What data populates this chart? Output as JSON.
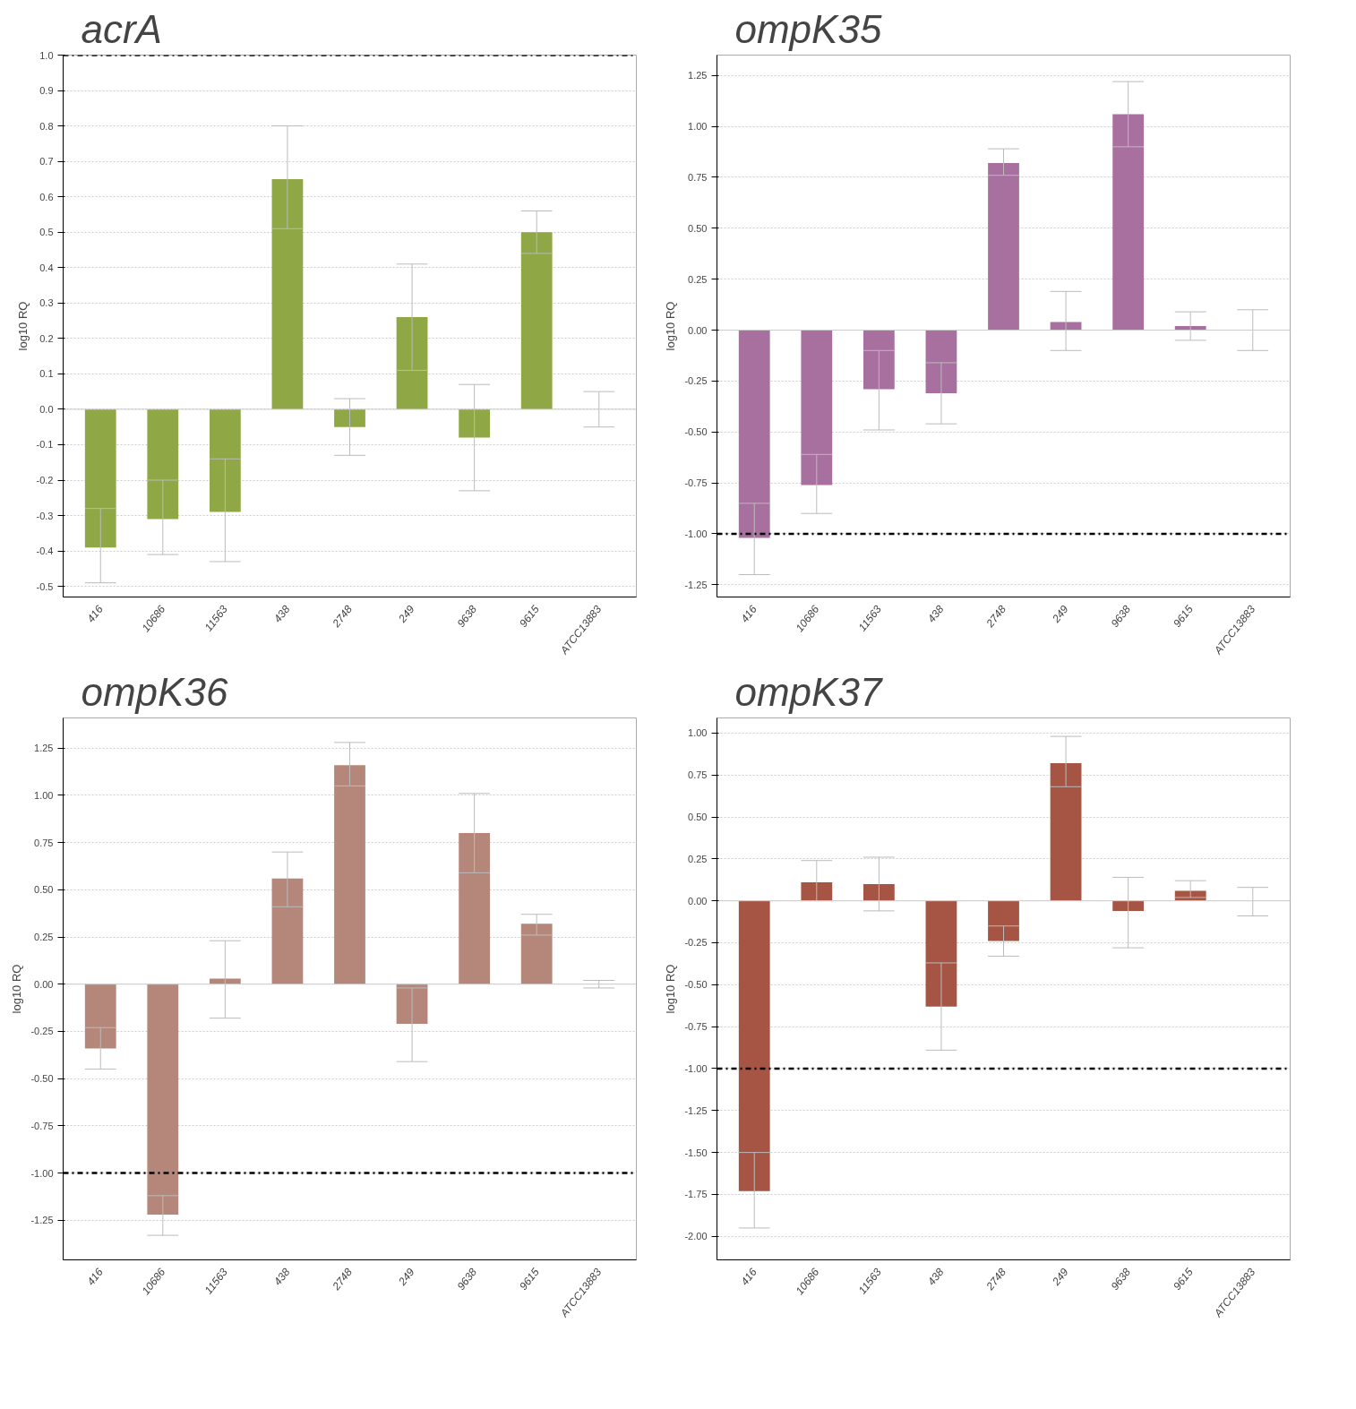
{
  "chart_data": [
    {
      "type": "bar",
      "title": "acrA",
      "ylabel": "log10 RQ",
      "categories": [
        "416",
        "10686",
        "11563",
        "438",
        "2748",
        "249",
        "9638",
        "9615",
        "ATCC13883"
      ],
      "series": [
        {
          "color": "#8fa744",
          "values": [
            -0.39,
            -0.31,
            -0.29,
            0.65,
            -0.05,
            0.26,
            -0.08,
            0.5,
            0.0
          ],
          "errors": [
            [
              -0.49,
              -0.28
            ],
            [
              -0.41,
              -0.2
            ],
            [
              -0.43,
              -0.14
            ],
            [
              0.51,
              0.8
            ],
            [
              -0.13,
              0.03
            ],
            [
              0.11,
              0.41
            ],
            [
              -0.23,
              0.07
            ],
            [
              0.44,
              0.56
            ],
            [
              -0.05,
              0.05
            ]
          ]
        }
      ],
      "ylim": [
        -0.53,
        1.0
      ],
      "yticks": [
        {
          "value": -0.5,
          "label": "-0.5"
        },
        {
          "value": -0.4,
          "label": "-0.4"
        },
        {
          "value": -0.3,
          "label": "-0.3"
        },
        {
          "value": -0.2,
          "label": "-0.2"
        },
        {
          "value": -0.1,
          "label": "-0.1"
        },
        {
          "value": 0,
          "label": "0.0"
        },
        0.1,
        0.2,
        0.3,
        0.4,
        0.5,
        0.6,
        0.7,
        0.8,
        0.9,
        {
          "value": 1.0,
          "label": "1.0"
        }
      ],
      "ref_lines": [
        {
          "axis": "y",
          "value": 1.0,
          "color": "#000000",
          "line_style": "dashdot"
        }
      ],
      "grid": "y"
    },
    {
      "type": "bar",
      "title": "ompK35",
      "ylabel": "log10 RQ",
      "categories": [
        "416",
        "10686",
        "11563",
        "438",
        "2748",
        "249",
        "9638",
        "9615",
        "ATCC13883"
      ],
      "series": [
        {
          "color": "#a8709f",
          "values": [
            -1.02,
            -0.76,
            -0.29,
            -0.31,
            0.82,
            0.04,
            1.06,
            0.02,
            0.0
          ],
          "errors": [
            [
              -1.2,
              -0.85
            ],
            [
              -0.9,
              -0.61
            ],
            [
              -0.49,
              -0.1
            ],
            [
              -0.46,
              -0.16
            ],
            [
              0.76,
              0.89
            ],
            [
              -0.1,
              0.19
            ],
            [
              0.9,
              1.22
            ],
            [
              -0.05,
              0.09
            ],
            [
              -0.1,
              0.1
            ]
          ]
        }
      ],
      "ylim": [
        -1.31,
        1.35
      ],
      "yticks": [
        {
          "value": -1.25,
          "label": "-1.25"
        },
        {
          "value": -1.0,
          "label": "-1.00"
        },
        {
          "value": -0.75,
          "label": "-0.75"
        },
        {
          "value": -0.5,
          "label": "-0.50"
        },
        {
          "value": -0.25,
          "label": "-0.25"
        },
        {
          "value": 0,
          "label": "0.00"
        },
        0.25,
        {
          "value": 0.5,
          "label": "0.50"
        },
        0.75,
        {
          "value": 1.0,
          "label": "1.00"
        },
        1.25
      ],
      "ref_lines": [
        {
          "axis": "y",
          "value": -1.0,
          "color": "#000000",
          "line_style": "dashdot"
        }
      ],
      "grid": "y"
    },
    {
      "type": "bar",
      "title": "ompK36",
      "ylabel": "log10 RQ",
      "categories": [
        "416",
        "10686",
        "11563",
        "438",
        "2748",
        "249",
        "9638",
        "9615",
        "ATCC13883"
      ],
      "series": [
        {
          "color": "#b5877a",
          "values": [
            -0.34,
            -1.22,
            0.03,
            0.56,
            1.16,
            -0.21,
            0.8,
            0.32,
            0.0
          ],
          "errors": [
            [
              -0.45,
              -0.23
            ],
            [
              -1.33,
              -1.12
            ],
            [
              -0.18,
              0.23
            ],
            [
              0.41,
              0.7
            ],
            [
              1.05,
              1.28
            ],
            [
              -0.41,
              -0.02
            ],
            [
              0.59,
              1.01
            ],
            [
              0.26,
              0.37
            ],
            [
              -0.02,
              0.02
            ]
          ]
        }
      ],
      "ylim": [
        -1.46,
        1.41
      ],
      "yticks": [
        {
          "value": -1.25,
          "label": "-1.25"
        },
        {
          "value": -1.0,
          "label": "-1.00"
        },
        {
          "value": -0.75,
          "label": "-0.75"
        },
        {
          "value": -0.5,
          "label": "-0.50"
        },
        {
          "value": -0.25,
          "label": "-0.25"
        },
        {
          "value": 0,
          "label": "0.00"
        },
        0.25,
        {
          "value": 0.5,
          "label": "0.50"
        },
        0.75,
        {
          "value": 1.0,
          "label": "1.00"
        },
        1.25
      ],
      "ref_lines": [
        {
          "axis": "y",
          "value": -1.0,
          "color": "#000000",
          "line_style": "dashdot"
        }
      ],
      "grid": "y"
    },
    {
      "type": "bar",
      "title": "ompK37",
      "ylabel": "log10 RQ",
      "categories": [
        "416",
        "10686",
        "11563",
        "438",
        "2748",
        "249",
        "9638",
        "9615",
        "ATCC13883"
      ],
      "series": [
        {
          "color": "#a65443",
          "values": [
            -1.73,
            0.11,
            0.1,
            -0.63,
            -0.24,
            0.82,
            -0.06,
            0.06,
            0.0
          ],
          "errors": [
            [
              -1.95,
              -1.5
            ],
            [
              0.0,
              0.24
            ],
            [
              -0.06,
              0.26
            ],
            [
              -0.89,
              -0.37
            ],
            [
              -0.33,
              -0.15
            ],
            [
              0.68,
              0.98
            ],
            [
              -0.28,
              0.14
            ],
            [
              0.02,
              0.12
            ],
            [
              -0.09,
              0.08
            ]
          ]
        }
      ],
      "ylim": [
        -2.14,
        1.09
      ],
      "yticks": [
        {
          "value": -2.0,
          "label": "-2.00"
        },
        {
          "value": -1.75,
          "label": "-1.75"
        },
        {
          "value": -1.5,
          "label": "-1.50"
        },
        {
          "value": -1.25,
          "label": "-1.25"
        },
        {
          "value": -1.0,
          "label": "-1.00"
        },
        {
          "value": -0.75,
          "label": "-0.75"
        },
        {
          "value": -0.5,
          "label": "-0.50"
        },
        {
          "value": -0.25,
          "label": "-0.25"
        },
        {
          "value": 0,
          "label": "0.00"
        },
        0.25,
        {
          "value": 0.5,
          "label": "0.50"
        },
        0.75,
        {
          "value": 1.0,
          "label": "1.00"
        }
      ],
      "ref_lines": [
        {
          "axis": "y",
          "value": -1.0,
          "color": "#000000",
          "line_style": "dashdot"
        }
      ],
      "grid": "y"
    }
  ]
}
